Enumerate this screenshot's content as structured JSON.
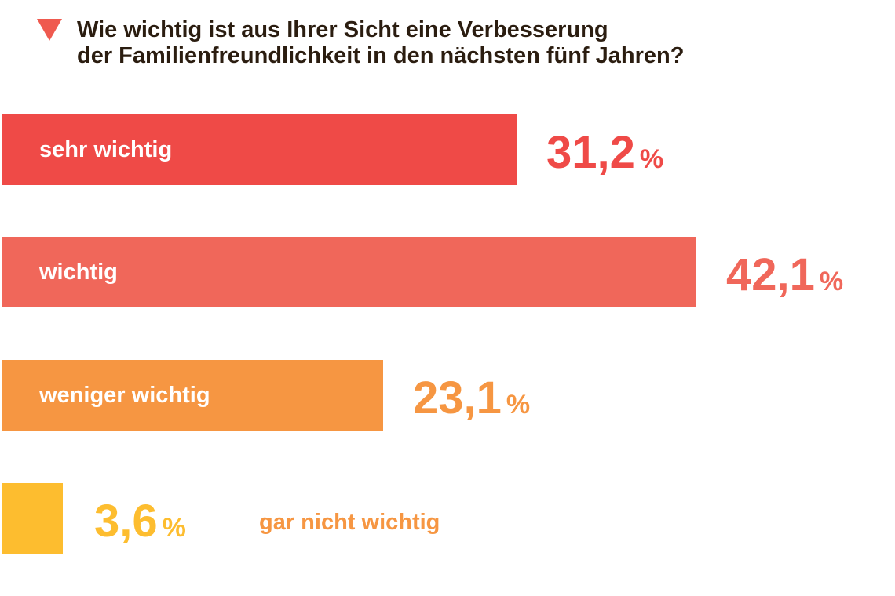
{
  "title_lines": [
    "Wie wichtig ist aus Ihrer Sicht eine Verbesserung",
    "der Familienfreundlichkeit in den nächsten fünf Jahren?"
  ],
  "colors": {
    "sehr_wichtig": "#ef4a47",
    "wichtig": "#f0675a",
    "weniger_wichtig": "#f69642",
    "gar_nicht_wichtig": "#fdbd2f",
    "title": "#2b1d10",
    "accent_triangle": "#ef5a4f"
  },
  "chart_data": {
    "type": "bar",
    "orientation": "horizontal",
    "title": "Wie wichtig ist aus Ihrer Sicht eine Verbesserung der Familienfreundlichkeit in den nächsten fünf Jahren?",
    "categories": [
      "sehr wichtig",
      "wichtig",
      "weniger wichtig",
      "gar nicht wichtig"
    ],
    "values": [
      31.2,
      42.1,
      23.1,
      3.6
    ],
    "value_labels": [
      "31,2",
      "42,1",
      "23,1",
      "3,6"
    ],
    "unit": "%",
    "xlim": [
      0,
      100
    ],
    "xlabel": "",
    "ylabel": ""
  }
}
